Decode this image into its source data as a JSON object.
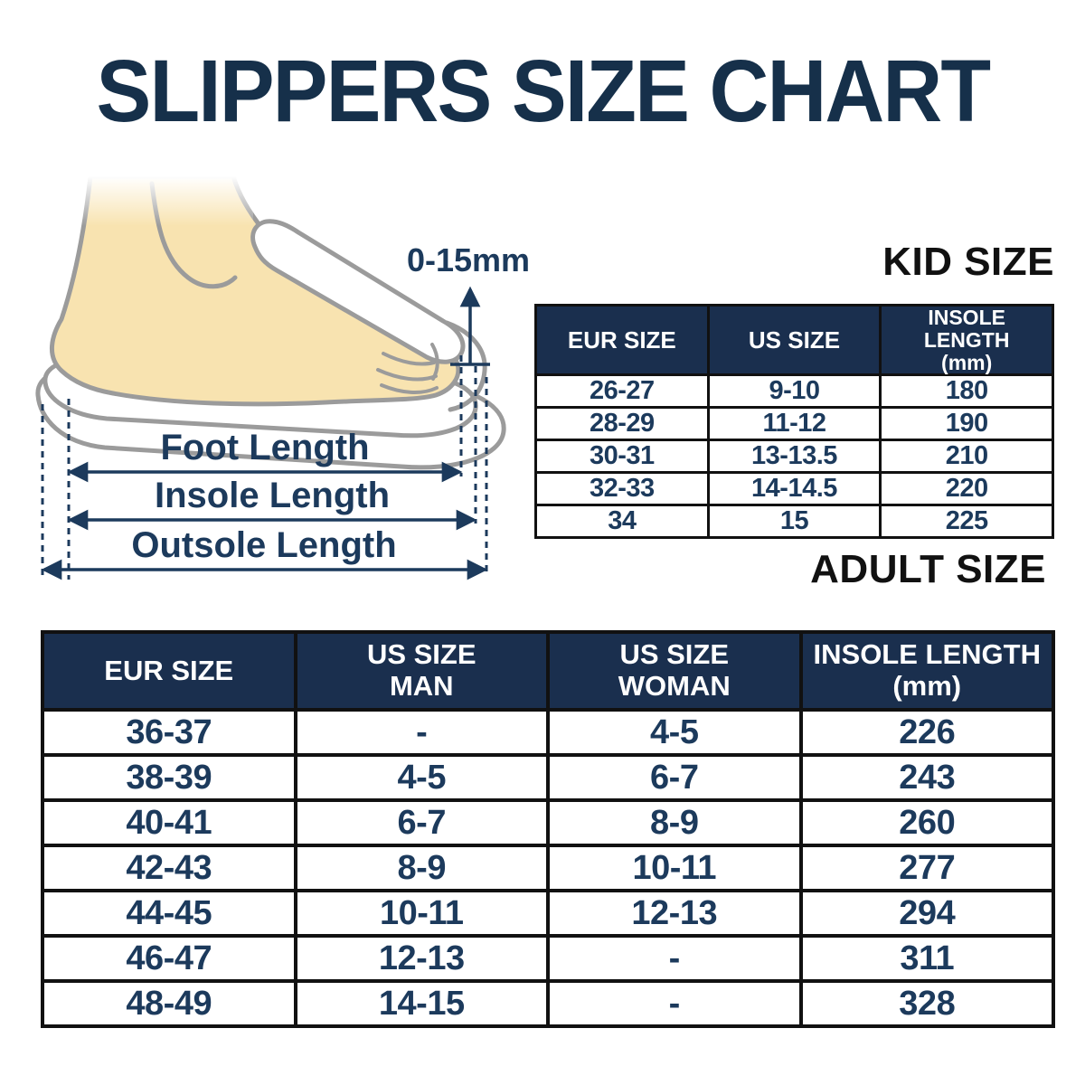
{
  "title": "SLIPPERS SIZE CHART",
  "diagram": {
    "toe_allowance_label": "0-15mm",
    "foot_length_label": "Foot Length",
    "insole_length_label": "Insole Length",
    "outsole_length_label": "Outsole Length"
  },
  "kid_table": {
    "heading": "KID SIZE",
    "columns": [
      "EUR SIZE",
      "US SIZE",
      "INSOLE LENGTH\n(mm)"
    ],
    "rows": [
      [
        "26-27",
        "9-10",
        "180"
      ],
      [
        "28-29",
        "11-12",
        "190"
      ],
      [
        "30-31",
        "13-13.5",
        "210"
      ],
      [
        "32-33",
        "14-14.5",
        "220"
      ],
      [
        "34",
        "15",
        "225"
      ]
    ]
  },
  "adult_table": {
    "heading": "ADULT SIZE",
    "columns": [
      "EUR SIZE",
      "US SIZE\nMAN",
      "US SIZE\nWOMAN",
      "INSOLE LENGTH\n(mm)"
    ],
    "rows": [
      [
        "36-37",
        "-",
        "4-5",
        "226"
      ],
      [
        "38-39",
        "4-5",
        "6-7",
        "243"
      ],
      [
        "40-41",
        "6-7",
        "8-9",
        "260"
      ],
      [
        "42-43",
        "8-9",
        "10-11",
        "277"
      ],
      [
        "44-45",
        "10-11",
        "12-13",
        "294"
      ],
      [
        "46-47",
        "12-13",
        "-",
        "311"
      ],
      [
        "48-49",
        "14-15",
        "-",
        "328"
      ]
    ]
  },
  "colors": {
    "navy_header": "#1a2f4e",
    "navy_text": "#1c3a5c",
    "title_navy": "#16304a",
    "border_black": "#111111",
    "heading_black": "#111111",
    "skin": "#f8e3b0",
    "outline_gray": "#9b9b9b"
  }
}
